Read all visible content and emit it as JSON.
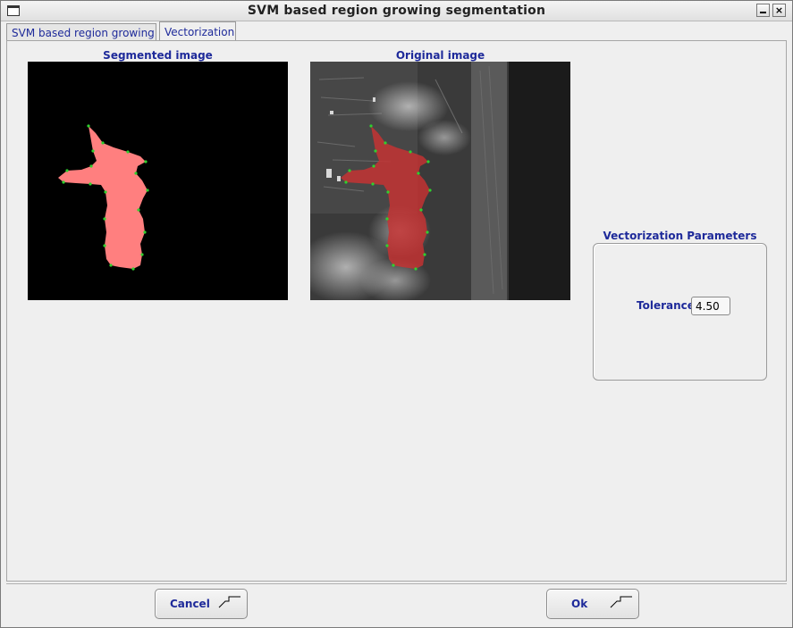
{
  "window": {
    "title": "SVM based region growing segmentation"
  },
  "tabs": [
    {
      "label": "SVM based region growing",
      "selected": false
    },
    {
      "label": "Vectorization",
      "selected": true
    }
  ],
  "images": {
    "segmented_caption": "Segmented image",
    "original_caption": "Original image"
  },
  "params": {
    "group_title": "Vectorization Parameters",
    "tolerance_label": "Tolerance",
    "tolerance_value": "4.50"
  },
  "buttons": {
    "cancel_label": "Cancel",
    "ok_label": "Ok"
  },
  "colors": {
    "accent_text": "#1e2a9a",
    "region_fill": "#ff7f7f",
    "region_overlay": "#c83232",
    "vertex_marker": "#2fd02f"
  }
}
